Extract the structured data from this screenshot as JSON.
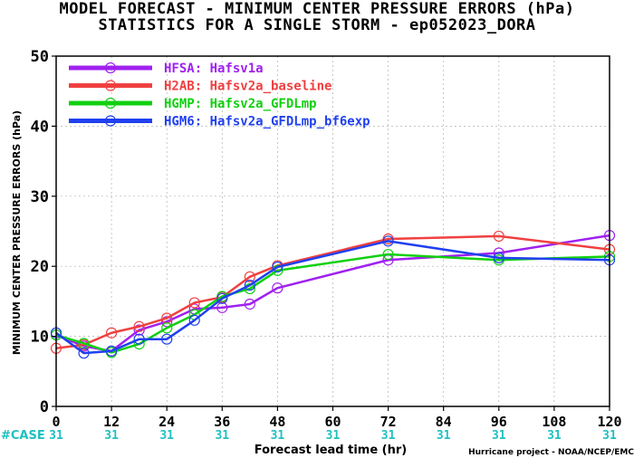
{
  "title_line1": "MODEL FORECAST - MINIMUM CENTER PRESSURE ERRORS (hPa)",
  "title_line2": "STATISTICS FOR A SINGLE STORM - ep052023_DORA",
  "credit": "Hurricane project - NOAA/NCEP/EMC",
  "case_label": "#CASE",
  "case_counts": [
    "31",
    "31",
    "31",
    "31",
    "31",
    "31",
    "31",
    "31",
    "31",
    "31",
    "31"
  ],
  "colors": {
    "HFSA": "#a020f0",
    "H2AB": "#f04040",
    "HGMP": "#10d010",
    "HGM6": "#2040f0",
    "case": "#20c0c0"
  },
  "chart_data": {
    "type": "line",
    "xlabel": "Forecast lead time (hr)",
    "ylabel": "MINIMUM CENTER PRESSURE ERRORS (hPa)",
    "xlim": [
      0,
      120
    ],
    "ylim": [
      0,
      50
    ],
    "xticks": [
      0,
      12,
      24,
      36,
      48,
      60,
      72,
      84,
      96,
      108,
      120
    ],
    "yticks": [
      0,
      10,
      20,
      30,
      40,
      50
    ],
    "legend_position": "top-left",
    "series": [
      {
        "key": "HFSA",
        "name": "HFSA: Hafsv1a",
        "x": [
          0,
          6,
          12,
          18,
          24,
          30,
          36,
          42,
          48,
          72,
          96,
          120
        ],
        "y": [
          10.2,
          8.6,
          7.9,
          10.9,
          12.1,
          13.9,
          14.1,
          14.6,
          16.9,
          20.9,
          21.9,
          24.4
        ]
      },
      {
        "key": "H2AB",
        "name": "H2AB: Hafsv2a_baseline",
        "x": [
          0,
          6,
          12,
          18,
          24,
          30,
          36,
          42,
          48,
          72,
          96,
          120
        ],
        "y": [
          8.3,
          8.8,
          10.5,
          11.4,
          12.6,
          14.8,
          15.6,
          18.5,
          20.1,
          23.9,
          24.3,
          22.4
        ]
      },
      {
        "key": "HGMP",
        "name": "HGMP: Hafsv2a_GFDLmp",
        "x": [
          0,
          6,
          12,
          18,
          24,
          30,
          36,
          42,
          48,
          72,
          96,
          120
        ],
        "y": [
          10.2,
          9.0,
          7.7,
          8.9,
          11.2,
          13.1,
          15.7,
          16.8,
          19.4,
          21.7,
          20.9,
          21.4
        ]
      },
      {
        "key": "HGM6",
        "name": "HGM6: Hafsv2a_GFDLmp_bf6exp",
        "x": [
          0,
          6,
          12,
          18,
          24,
          30,
          36,
          42,
          48,
          72,
          96,
          120
        ],
        "y": [
          10.5,
          7.6,
          7.9,
          9.6,
          9.6,
          12.3,
          15.4,
          17.3,
          19.9,
          23.6,
          21.2,
          20.9
        ]
      }
    ]
  }
}
